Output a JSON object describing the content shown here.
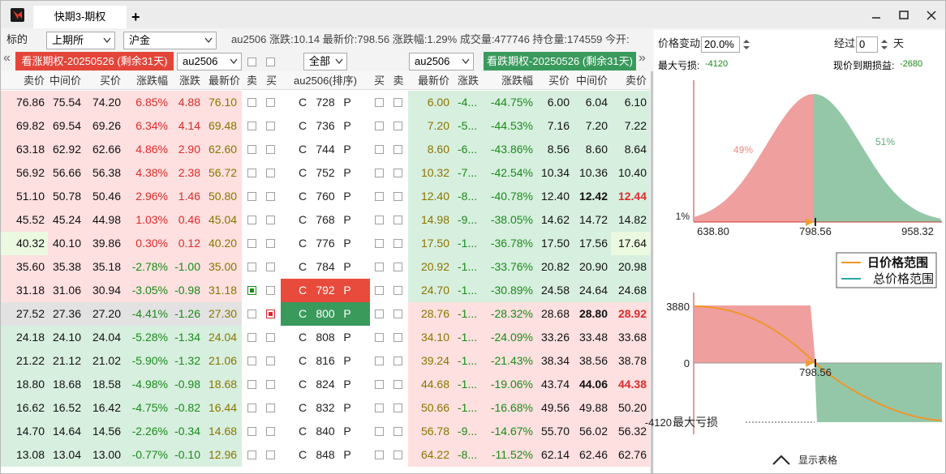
{
  "window": {
    "tab": "快期3-期权",
    "new_tab": "+"
  },
  "toolbar": {
    "label": "标的",
    "exchange": "上期所",
    "product": "沪金",
    "quote": "au2506 涨跌:10.14 最新价:798.56 涨跌幅:1.29% 成交量:477746 持仓量:174559 今开:"
  },
  "expiry_bar": {
    "prev": "«",
    "call_title": "看涨期权-20250526 (剩余31天)",
    "call_contract": "au2506",
    "filter": "全部",
    "put_contract": "au2506",
    "put_title": "看跌期权-20250526 (剩余31天)",
    "next": "»"
  },
  "table": {
    "headers": [
      "卖价",
      "中间价",
      "买价",
      "涨跌幅",
      "涨跌",
      "最新价",
      "卖",
      "买",
      "au2506(排序)",
      "买",
      "卖",
      "最新价",
      "涨跌",
      "涨跌幅",
      "买价",
      "中间价",
      "卖价"
    ],
    "call_tag": "C",
    "put_tag": "P",
    "rows": [
      {
        "call": [
          "76.86",
          "75.54",
          "74.20",
          "6.85%",
          "4.88",
          "76.10"
        ],
        "strike": "728",
        "put": [
          "6.00",
          "-4...",
          "-44.75%",
          "6.00",
          "6.04",
          "6.10"
        ]
      },
      {
        "call": [
          "69.82",
          "69.54",
          "69.26",
          "6.34%",
          "4.14",
          "69.48"
        ],
        "strike": "736",
        "put": [
          "7.20",
          "-5...",
          "-44.53%",
          "7.16",
          "7.20",
          "7.22"
        ]
      },
      {
        "call": [
          "63.18",
          "62.92",
          "62.66",
          "4.86%",
          "2.90",
          "62.60"
        ],
        "strike": "744",
        "put": [
          "8.60",
          "-6...",
          "-43.86%",
          "8.56",
          "8.60",
          "8.64"
        ]
      },
      {
        "call": [
          "56.92",
          "56.66",
          "56.38",
          "4.38%",
          "2.38",
          "56.72"
        ],
        "strike": "752",
        "put": [
          "10.32",
          "-7...",
          "-42.54%",
          "10.34",
          "10.36",
          "10.40"
        ]
      },
      {
        "call": [
          "51.10",
          "50.78",
          "50.46",
          "2.96%",
          "1.46",
          "50.80"
        ],
        "strike": "760",
        "put": [
          "12.40",
          "-8...",
          "-40.78%",
          "12.40",
          "12.42",
          "12.44"
        ]
      },
      {
        "call": [
          "45.52",
          "45.24",
          "44.98",
          "1.03%",
          "0.46",
          "45.04"
        ],
        "strike": "768",
        "put": [
          "14.98",
          "-9...",
          "-38.05%",
          "14.62",
          "14.72",
          "14.82"
        ]
      },
      {
        "call": [
          "40.32",
          "40.10",
          "39.86",
          "0.30%",
          "0.12",
          "40.20"
        ],
        "strike": "776",
        "put": [
          "17.50",
          "-1...",
          "-36.78%",
          "17.50",
          "17.56",
          "17.64"
        ]
      },
      {
        "call": [
          "35.60",
          "35.38",
          "35.18",
          "-2.78%",
          "-1.00",
          "35.00"
        ],
        "strike": "784",
        "put": [
          "20.92",
          "-1...",
          "-33.76%",
          "20.82",
          "20.90",
          "20.98"
        ]
      },
      {
        "call": [
          "31.18",
          "31.06",
          "30.94",
          "-3.05%",
          "-0.98",
          "31.18"
        ],
        "strike": "792",
        "put": [
          "24.70",
          "-1...",
          "-30.89%",
          "24.58",
          "24.64",
          "24.68"
        ]
      },
      {
        "call": [
          "27.52",
          "27.36",
          "27.20",
          "-4.41%",
          "-1.26",
          "27.30"
        ],
        "strike": "800",
        "put": [
          "28.76",
          "-1...",
          "-28.32%",
          "28.68",
          "28.80",
          "28.92"
        ]
      },
      {
        "call": [
          "24.18",
          "24.10",
          "24.04",
          "-5.28%",
          "-1.34",
          "24.04"
        ],
        "strike": "808",
        "put": [
          "34.10",
          "-1...",
          "-24.09%",
          "33.26",
          "33.48",
          "33.68"
        ]
      },
      {
        "call": [
          "21.22",
          "21.12",
          "21.02",
          "-5.90%",
          "-1.32",
          "21.06"
        ],
        "strike": "816",
        "put": [
          "39.24",
          "-1...",
          "-21.43%",
          "38.34",
          "38.56",
          "38.78"
        ]
      },
      {
        "call": [
          "18.80",
          "18.68",
          "18.58",
          "-4.98%",
          "-0.98",
          "18.68"
        ],
        "strike": "824",
        "put": [
          "44.68",
          "-1...",
          "-19.06%",
          "43.74",
          "44.06",
          "44.38"
        ]
      },
      {
        "call": [
          "16.62",
          "16.52",
          "16.42",
          "-4.75%",
          "-0.82",
          "16.44"
        ],
        "strike": "832",
        "put": [
          "50.66",
          "-1...",
          "-16.68%",
          "49.56",
          "49.88",
          "50.20"
        ]
      },
      {
        "call": [
          "14.70",
          "14.64",
          "14.56",
          "-2.26%",
          "-0.34",
          "14.68"
        ],
        "strike": "840",
        "put": [
          "56.78",
          "-9...",
          "-14.67%",
          "55.70",
          "56.02",
          "56.32"
        ]
      },
      {
        "call": [
          "13.08",
          "13.04",
          "13.00",
          "-0.77%",
          "-0.10",
          "12.96"
        ],
        "strike": "848",
        "put": [
          "64.22",
          "-8...",
          "-11.52%",
          "62.14",
          "62.46",
          "62.76"
        ]
      }
    ]
  },
  "panel": {
    "price_change_label": "价格变动",
    "price_change": "20.0%",
    "elapsed_label": "经过",
    "elapsed": "0",
    "days_unit": "天",
    "max_loss_label": "最大亏损:",
    "max_loss": "-4120",
    "pnl_label": "现价到期损益:",
    "pnl": "-2680",
    "dist_chart": {
      "left_pct": "49%",
      "right_pct": "51%",
      "floor": "1%",
      "xticks": [
        "638.80",
        "798.56",
        "958.32"
      ]
    },
    "legend": [
      "日价格范围",
      "总价格范围"
    ],
    "payoff_chart": {
      "yticks": [
        "3880",
        "0",
        "-4120"
      ],
      "price": "798.56",
      "max_loss_note": "最大亏损"
    },
    "show_table": "显示表格"
  }
}
